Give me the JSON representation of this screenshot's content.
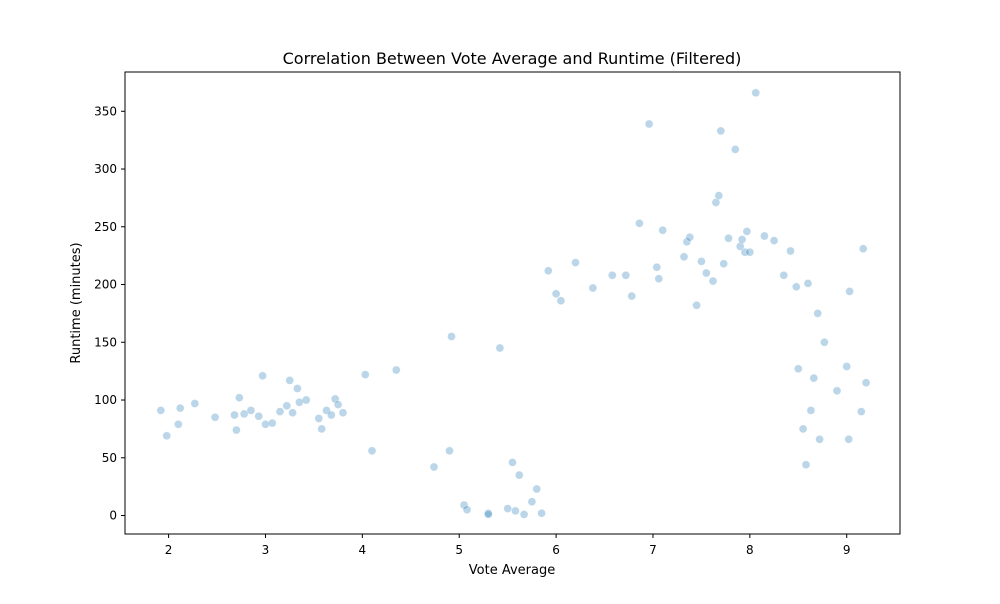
{
  "chart_data": {
    "type": "scatter",
    "title": "Correlation Between Vote Average and Runtime (Filtered)",
    "xlabel": "Vote Average",
    "ylabel": "Runtime (minutes)",
    "xlim": [
      1.55,
      9.55
    ],
    "ylim": [
      -16,
      384
    ],
    "xticks": [
      2,
      3,
      4,
      5,
      6,
      7,
      8,
      9
    ],
    "yticks": [
      0,
      50,
      100,
      150,
      200,
      250,
      300,
      350
    ],
    "grid": false,
    "legend": "none",
    "point_color": "#1f77b4",
    "point_alpha": 0.3,
    "points": [
      [
        1.92,
        91
      ],
      [
        1.98,
        69
      ],
      [
        2.1,
        79
      ],
      [
        2.12,
        93
      ],
      [
        2.27,
        97
      ],
      [
        2.48,
        85
      ],
      [
        2.68,
        87
      ],
      [
        2.7,
        74
      ],
      [
        2.73,
        102
      ],
      [
        2.78,
        88
      ],
      [
        2.85,
        91
      ],
      [
        2.93,
        86
      ],
      [
        2.97,
        121
      ],
      [
        3.0,
        79
      ],
      [
        3.07,
        80
      ],
      [
        3.15,
        90
      ],
      [
        3.22,
        95
      ],
      [
        3.25,
        117
      ],
      [
        3.28,
        89
      ],
      [
        3.33,
        110
      ],
      [
        3.35,
        98
      ],
      [
        3.42,
        100
      ],
      [
        3.55,
        84
      ],
      [
        3.58,
        75
      ],
      [
        3.63,
        91
      ],
      [
        3.68,
        87
      ],
      [
        3.72,
        101
      ],
      [
        3.75,
        96
      ],
      [
        3.8,
        89
      ],
      [
        4.03,
        122
      ],
      [
        4.1,
        56
      ],
      [
        4.35,
        126
      ],
      [
        4.74,
        42
      ],
      [
        4.9,
        56
      ],
      [
        4.92,
        155
      ],
      [
        5.05,
        9
      ],
      [
        5.08,
        5
      ],
      [
        5.3,
        2
      ],
      [
        5.3,
        1
      ],
      [
        5.42,
        145
      ],
      [
        5.5,
        6
      ],
      [
        5.55,
        46
      ],
      [
        5.58,
        4
      ],
      [
        5.62,
        35
      ],
      [
        5.67,
        1
      ],
      [
        5.75,
        12
      ],
      [
        5.8,
        23
      ],
      [
        5.85,
        2
      ],
      [
        5.92,
        212
      ],
      [
        6.0,
        192
      ],
      [
        6.05,
        186
      ],
      [
        6.2,
        219
      ],
      [
        6.38,
        197
      ],
      [
        6.58,
        208
      ],
      [
        6.72,
        208
      ],
      [
        6.78,
        190
      ],
      [
        6.86,
        253
      ],
      [
        6.96,
        339
      ],
      [
        7.04,
        215
      ],
      [
        7.06,
        205
      ],
      [
        7.1,
        247
      ],
      [
        7.32,
        224
      ],
      [
        7.35,
        237
      ],
      [
        7.38,
        241
      ],
      [
        7.45,
        182
      ],
      [
        7.5,
        220
      ],
      [
        7.55,
        210
      ],
      [
        7.62,
        203
      ],
      [
        7.65,
        271
      ],
      [
        7.68,
        277
      ],
      [
        7.7,
        333
      ],
      [
        7.73,
        218
      ],
      [
        7.78,
        240
      ],
      [
        7.85,
        317
      ],
      [
        7.9,
        233
      ],
      [
        7.92,
        239
      ],
      [
        7.95,
        228
      ],
      [
        7.97,
        246
      ],
      [
        8.0,
        228
      ],
      [
        8.06,
        366
      ],
      [
        8.15,
        242
      ],
      [
        8.25,
        238
      ],
      [
        8.35,
        208
      ],
      [
        8.42,
        229
      ],
      [
        8.48,
        198
      ],
      [
        8.5,
        127
      ],
      [
        8.55,
        75
      ],
      [
        8.58,
        44
      ],
      [
        8.6,
        201
      ],
      [
        8.63,
        91
      ],
      [
        8.66,
        119
      ],
      [
        8.7,
        175
      ],
      [
        8.72,
        66
      ],
      [
        8.77,
        150
      ],
      [
        8.9,
        108
      ],
      [
        9.0,
        129
      ],
      [
        9.02,
        66
      ],
      [
        9.03,
        194
      ],
      [
        9.15,
        90
      ],
      [
        9.17,
        231
      ],
      [
        9.2,
        115
      ]
    ]
  }
}
